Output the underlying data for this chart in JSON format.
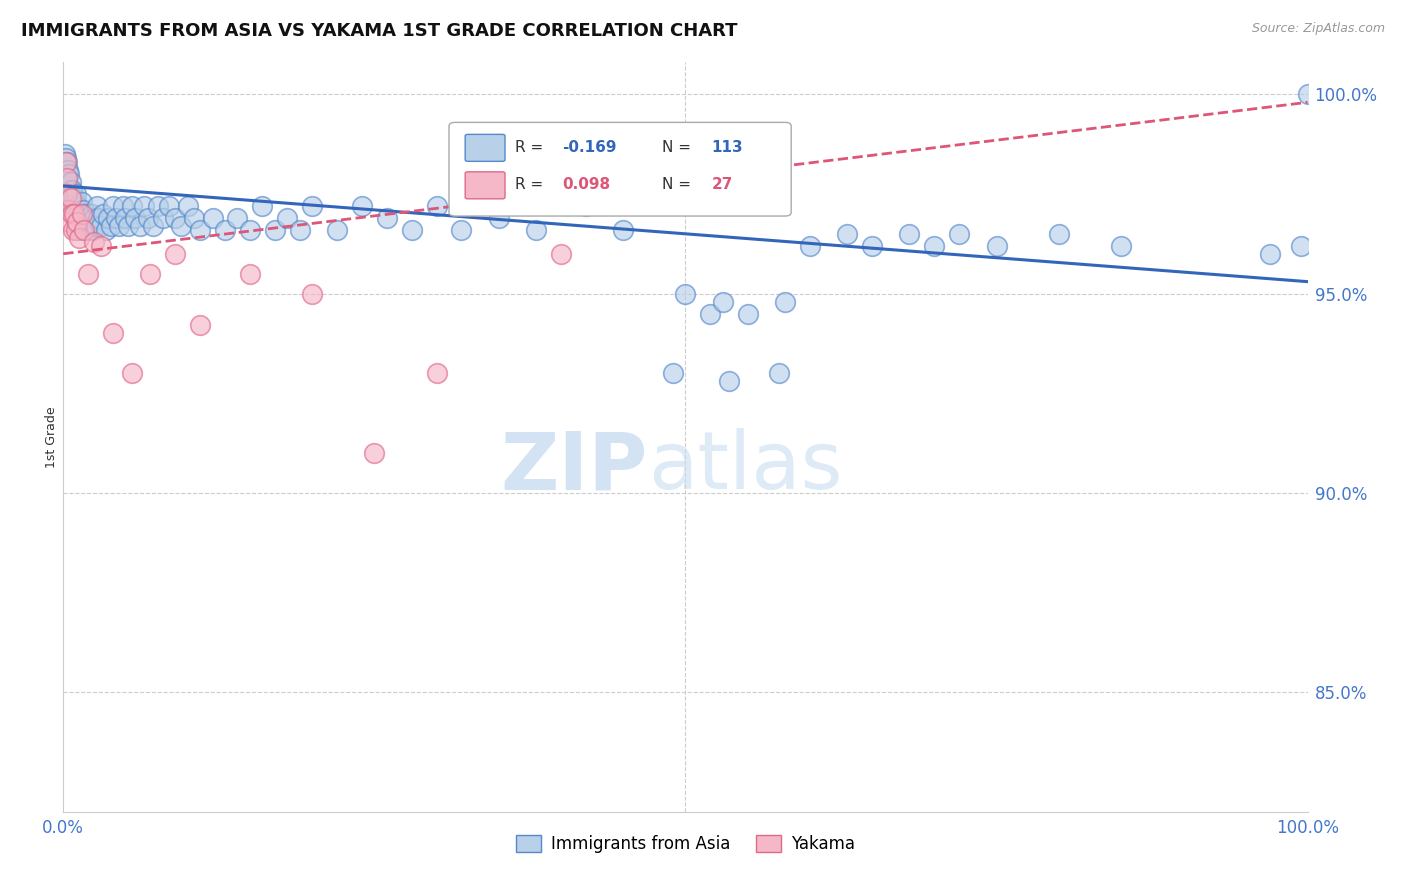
{
  "title": "IMMIGRANTS FROM ASIA VS YAKAMA 1ST GRADE CORRELATION CHART",
  "source": "Source: ZipAtlas.com",
  "ylabel": "1st Grade",
  "y_tick_labels": [
    "100.0%",
    "95.0%",
    "90.0%",
    "85.0%"
  ],
  "y_tick_values": [
    1.0,
    0.95,
    0.9,
    0.85
  ],
  "legend_blue_r": "-0.169",
  "legend_blue_n": "113",
  "legend_pink_r": "0.098",
  "legend_pink_n": "27",
  "legend_label_blue": "Immigrants from Asia",
  "legend_label_pink": "Yakama",
  "blue_color": "#b8d0e8",
  "blue_edge_color": "#5588cc",
  "pink_color": "#f5b8c8",
  "pink_edge_color": "#e06888",
  "blue_line_color": "#3366bb",
  "pink_line_color": "#dd5577",
  "blue_trend": [
    0.0,
    1.0,
    0.977,
    0.953
  ],
  "pink_trend": [
    0.0,
    1.0,
    0.96,
    0.998
  ],
  "xlim": [
    0.0,
    1.0
  ],
  "ylim": [
    0.82,
    1.008
  ],
  "blue_x": [
    0.001,
    0.001,
    0.002,
    0.002,
    0.002,
    0.003,
    0.003,
    0.003,
    0.003,
    0.004,
    0.004,
    0.005,
    0.005,
    0.005,
    0.006,
    0.006,
    0.007,
    0.007,
    0.008,
    0.008,
    0.009,
    0.009,
    0.01,
    0.01,
    0.01,
    0.011,
    0.011,
    0.012,
    0.012,
    0.013,
    0.013,
    0.014,
    0.015,
    0.015,
    0.016,
    0.016,
    0.017,
    0.018,
    0.019,
    0.02,
    0.02,
    0.021,
    0.022,
    0.023,
    0.024,
    0.025,
    0.026,
    0.027,
    0.028,
    0.03,
    0.032,
    0.034,
    0.036,
    0.038,
    0.04,
    0.042,
    0.045,
    0.048,
    0.05,
    0.052,
    0.055,
    0.058,
    0.062,
    0.065,
    0.068,
    0.072,
    0.076,
    0.08,
    0.085,
    0.09,
    0.095,
    0.1,
    0.105,
    0.11,
    0.12,
    0.13,
    0.14,
    0.15,
    0.16,
    0.17,
    0.18,
    0.19,
    0.2,
    0.22,
    0.24,
    0.26,
    0.28,
    0.3,
    0.32,
    0.35,
    0.38,
    0.42,
    0.45,
    0.5,
    0.52,
    0.53,
    0.55,
    0.58,
    0.6,
    0.63,
    0.65,
    0.68,
    0.7,
    0.72,
    0.75,
    0.8,
    0.85,
    0.97,
    0.995,
    1.0,
    0.575,
    0.535,
    0.49
  ],
  "blue_y": [
    0.985,
    0.982,
    0.984,
    0.98,
    0.978,
    0.983,
    0.979,
    0.976,
    0.973,
    0.981,
    0.977,
    0.98,
    0.976,
    0.972,
    0.978,
    0.974,
    0.976,
    0.972,
    0.975,
    0.971,
    0.974,
    0.97,
    0.973,
    0.969,
    0.975,
    0.972,
    0.968,
    0.971,
    0.967,
    0.97,
    0.966,
    0.969,
    0.973,
    0.968,
    0.971,
    0.967,
    0.97,
    0.969,
    0.967,
    0.97,
    0.966,
    0.969,
    0.967,
    0.97,
    0.966,
    0.969,
    0.967,
    0.972,
    0.969,
    0.967,
    0.97,
    0.966,
    0.969,
    0.967,
    0.972,
    0.969,
    0.967,
    0.972,
    0.969,
    0.967,
    0.972,
    0.969,
    0.967,
    0.972,
    0.969,
    0.967,
    0.972,
    0.969,
    0.972,
    0.969,
    0.967,
    0.972,
    0.969,
    0.966,
    0.969,
    0.966,
    0.969,
    0.966,
    0.972,
    0.966,
    0.969,
    0.966,
    0.972,
    0.966,
    0.972,
    0.969,
    0.966,
    0.972,
    0.966,
    0.969,
    0.966,
    0.972,
    0.966,
    0.95,
    0.945,
    0.948,
    0.945,
    0.948,
    0.962,
    0.965,
    0.962,
    0.965,
    0.962,
    0.965,
    0.962,
    0.965,
    0.962,
    0.96,
    0.962,
    1.0,
    0.93,
    0.928,
    0.93
  ],
  "pink_x": [
    0.002,
    0.003,
    0.003,
    0.004,
    0.005,
    0.006,
    0.007,
    0.008,
    0.009,
    0.01,
    0.011,
    0.013,
    0.015,
    0.017,
    0.02,
    0.025,
    0.03,
    0.04,
    0.055,
    0.07,
    0.09,
    0.11,
    0.15,
    0.2,
    0.25,
    0.3,
    0.4
  ],
  "pink_y": [
    0.983,
    0.979,
    0.975,
    0.971,
    0.968,
    0.974,
    0.97,
    0.966,
    0.97,
    0.966,
    0.968,
    0.964,
    0.97,
    0.966,
    0.955,
    0.963,
    0.962,
    0.94,
    0.93,
    0.955,
    0.96,
    0.942,
    0.955,
    0.95,
    0.91,
    0.93,
    0.96
  ]
}
